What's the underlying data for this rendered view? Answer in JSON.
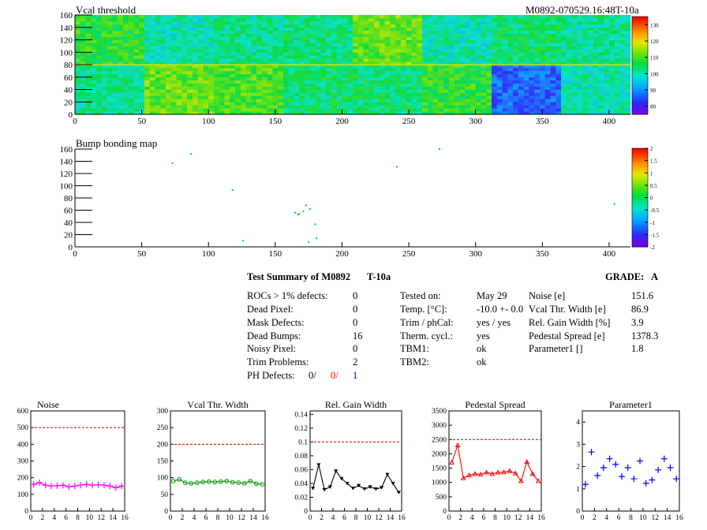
{
  "header": {
    "map1_title": "Vcal threshold",
    "module_id": "M0892-070529.16:48T-10a",
    "map2_title": "Bump bonding map"
  },
  "summary": {
    "title": "Test Summary of M0892",
    "test_label": "T-10a",
    "grade_label": "GRADE:",
    "grade_value": "A",
    "col1": [
      {
        "label": "ROCs > 1% defects:",
        "value": "0"
      },
      {
        "label": "Dead Pixel:",
        "value": "0"
      },
      {
        "label": "Mask Defects:",
        "value": "0"
      },
      {
        "label": "Dead Bumps:",
        "value": "16"
      },
      {
        "label": "Noisy Pixel:",
        "value": "0"
      },
      {
        "label": "Trim Problems:",
        "value": "2"
      }
    ],
    "ph_defects": {
      "label": "PH Defects:",
      "v1": "0/",
      "v2": "0/",
      "v3": "1"
    },
    "col2": [
      {
        "label": "Tested on:",
        "value": "May 29"
      },
      {
        "label": "Temp. [°C]:",
        "value": "-10.0 +- 0.0"
      },
      {
        "label": "Trim / phCal:",
        "value": "yes / yes"
      },
      {
        "label": "Therm. cycl.:",
        "value": "yes"
      },
      {
        "label": "TBM1:",
        "value": "ok"
      },
      {
        "label": "TBM2:",
        "value": "ok"
      }
    ],
    "col3": [
      {
        "label": "Noise [e]",
        "value": "151.6"
      },
      {
        "label": "Vcal Thr. Width [e]",
        "value": "86.9"
      },
      {
        "label": "Rel. Gain Width [%]",
        "value": "3.9"
      },
      {
        "label": "Pedestal Spread [e]",
        "value": "1378.3"
      },
      {
        "label": "Parameter1 []",
        "value": "1.8"
      }
    ]
  },
  "colors": {
    "magenta": "#ff00ff",
    "green": "#009900",
    "black": "#000000",
    "red": "#ff0000",
    "blue": "#0000ff",
    "limit": "#cc0000"
  },
  "chart_data": [
    {
      "type": "heatmap",
      "title": "Vcal threshold",
      "x_ticks": [
        "0",
        "50",
        "100",
        "150",
        "200",
        "250",
        "300",
        "350",
        "400"
      ],
      "y_ticks": [
        "0",
        "20",
        "40",
        "60",
        "80",
        "100",
        "120",
        "140",
        "160"
      ],
      "xlim": [
        0,
        416
      ],
      "ylim": [
        0,
        160
      ],
      "colorbar_ticks": [
        "80",
        "90",
        "100",
        "110",
        "120",
        "130"
      ],
      "colorbar_range": [
        75,
        135
      ],
      "roc_mean_values_top": [
        108,
        100,
        102,
        103,
        112,
        100,
        104,
        102
      ],
      "roc_mean_values_bottom": [
        102,
        112,
        110,
        104,
        104,
        108,
        86,
        100
      ]
    },
    {
      "type": "scatter",
      "title": "Bump bonding map",
      "x_ticks": [
        "0",
        "50",
        "100",
        "150",
        "200",
        "250",
        "300",
        "350",
        "400"
      ],
      "y_ticks": [
        "0",
        "20",
        "40",
        "60",
        "80",
        "100",
        "120",
        "140",
        "160"
      ],
      "xlim": [
        0,
        416
      ],
      "ylim": [
        0,
        160
      ],
      "colorbar_ticks": [
        "2",
        "1.5",
        "1",
        "0.5",
        "0",
        "-0.5",
        "-1",
        "-1.5",
        "-2"
      ],
      "colorbar_range": [
        -2,
        2
      ],
      "dead_bumps": [
        [
          73,
          137
        ],
        [
          87,
          152
        ],
        [
          118,
          93
        ],
        [
          241,
          131
        ],
        [
          273,
          160
        ],
        [
          165,
          56
        ],
        [
          167,
          53
        ],
        [
          171,
          58
        ],
        [
          173,
          68
        ],
        [
          180,
          37
        ],
        [
          126,
          10
        ],
        [
          175,
          8
        ],
        [
          181,
          14
        ],
        [
          404,
          70
        ],
        [
          176,
          62
        ],
        [
          168,
          54
        ]
      ]
    },
    {
      "type": "line",
      "title": "Noise",
      "x": [
        0,
        1,
        2,
        3,
        4,
        5,
        6,
        7,
        8,
        9,
        10,
        11,
        12,
        13,
        14,
        15
      ],
      "values": [
        160,
        170,
        155,
        150,
        152,
        155,
        145,
        150,
        155,
        160,
        155,
        158,
        155,
        150,
        140,
        150
      ],
      "ylim": [
        0,
        600
      ],
      "limit": 500,
      "y_ticks": [
        "0",
        "100",
        "200",
        "300",
        "400",
        "500",
        "600"
      ],
      "x_ticks": [
        "0",
        "2",
        "4",
        "6",
        "8",
        "10",
        "12",
        "14",
        "16"
      ],
      "marker": "plus",
      "color": "#ff00ff",
      "connect": true
    },
    {
      "type": "line",
      "title": "Vcal Thr. Width",
      "x": [
        0,
        1,
        2,
        3,
        4,
        5,
        6,
        7,
        8,
        9,
        10,
        11,
        12,
        13,
        14,
        15
      ],
      "values": [
        90,
        95,
        85,
        83,
        85,
        87,
        88,
        87,
        88,
        90,
        86,
        85,
        83,
        90,
        82,
        80
      ],
      "ylim": [
        0,
        300
      ],
      "limit": 200,
      "y_ticks": [
        "0",
        "50",
        "100",
        "150",
        "200",
        "250",
        "300"
      ],
      "x_ticks": [
        "0",
        "2",
        "4",
        "6",
        "8",
        "10",
        "12",
        "14",
        "16"
      ],
      "marker": "circle",
      "color": "#009900",
      "connect": true
    },
    {
      "type": "line",
      "title": "Rel. Gain Width",
      "x": [
        0,
        1,
        2,
        3,
        4,
        5,
        6,
        7,
        8,
        9,
        10,
        11,
        12,
        13,
        14,
        15
      ],
      "values": [
        0.033,
        0.067,
        0.031,
        0.035,
        0.058,
        0.047,
        0.04,
        0.033,
        0.037,
        0.032,
        0.035,
        0.032,
        0.034,
        0.053,
        0.04,
        0.027
      ],
      "ylim": [
        0,
        0.145
      ],
      "limit": 0.1,
      "y_ticks": [
        "0",
        "0.02",
        "0.04",
        "0.06",
        "0.08",
        "0.1",
        "0.12",
        "0.14"
      ],
      "x_ticks": [
        "0",
        "2",
        "4",
        "6",
        "8",
        "10",
        "12",
        "14",
        "16"
      ],
      "marker": "triangle-down",
      "color": "#000000",
      "connect": true
    },
    {
      "type": "line",
      "title": "Pedestal Spread",
      "x": [
        0,
        1,
        2,
        3,
        4,
        5,
        6,
        7,
        8,
        9,
        10,
        11,
        12,
        13,
        14,
        15
      ],
      "values": [
        1700,
        2300,
        1150,
        1250,
        1300,
        1280,
        1350,
        1300,
        1350,
        1360,
        1400,
        1320,
        1050,
        1720,
        1300,
        1050
      ],
      "ylim": [
        0,
        3500
      ],
      "limit": 2500,
      "y_ticks": [
        "0",
        "500",
        "1000",
        "1500",
        "2000",
        "2500",
        "3000",
        "3500"
      ],
      "x_ticks": [
        "0",
        "2",
        "4",
        "6",
        "8",
        "10",
        "12",
        "14",
        "16"
      ],
      "marker": "triangle-up",
      "color": "#ff0000",
      "connect": true
    },
    {
      "type": "scatter",
      "title": "Parameter1",
      "x": [
        0,
        1,
        2,
        3,
        4,
        5,
        6,
        7,
        8,
        9,
        10,
        11,
        12,
        13,
        14,
        15
      ],
      "values": [
        1.2,
        2.65,
        1.6,
        1.95,
        2.35,
        2.1,
        1.55,
        1.95,
        1.45,
        2.25,
        1.25,
        1.4,
        1.85,
        2.35,
        1.95,
        1.45
      ],
      "ylim": [
        0,
        4.5
      ],
      "y_ticks": [
        "0",
        "1",
        "2",
        "3",
        "4"
      ],
      "x_ticks": [
        "0",
        "2",
        "4",
        "6",
        "8",
        "10",
        "12",
        "14",
        "16"
      ],
      "marker": "plus",
      "color": "#0000ff",
      "connect": false
    }
  ]
}
